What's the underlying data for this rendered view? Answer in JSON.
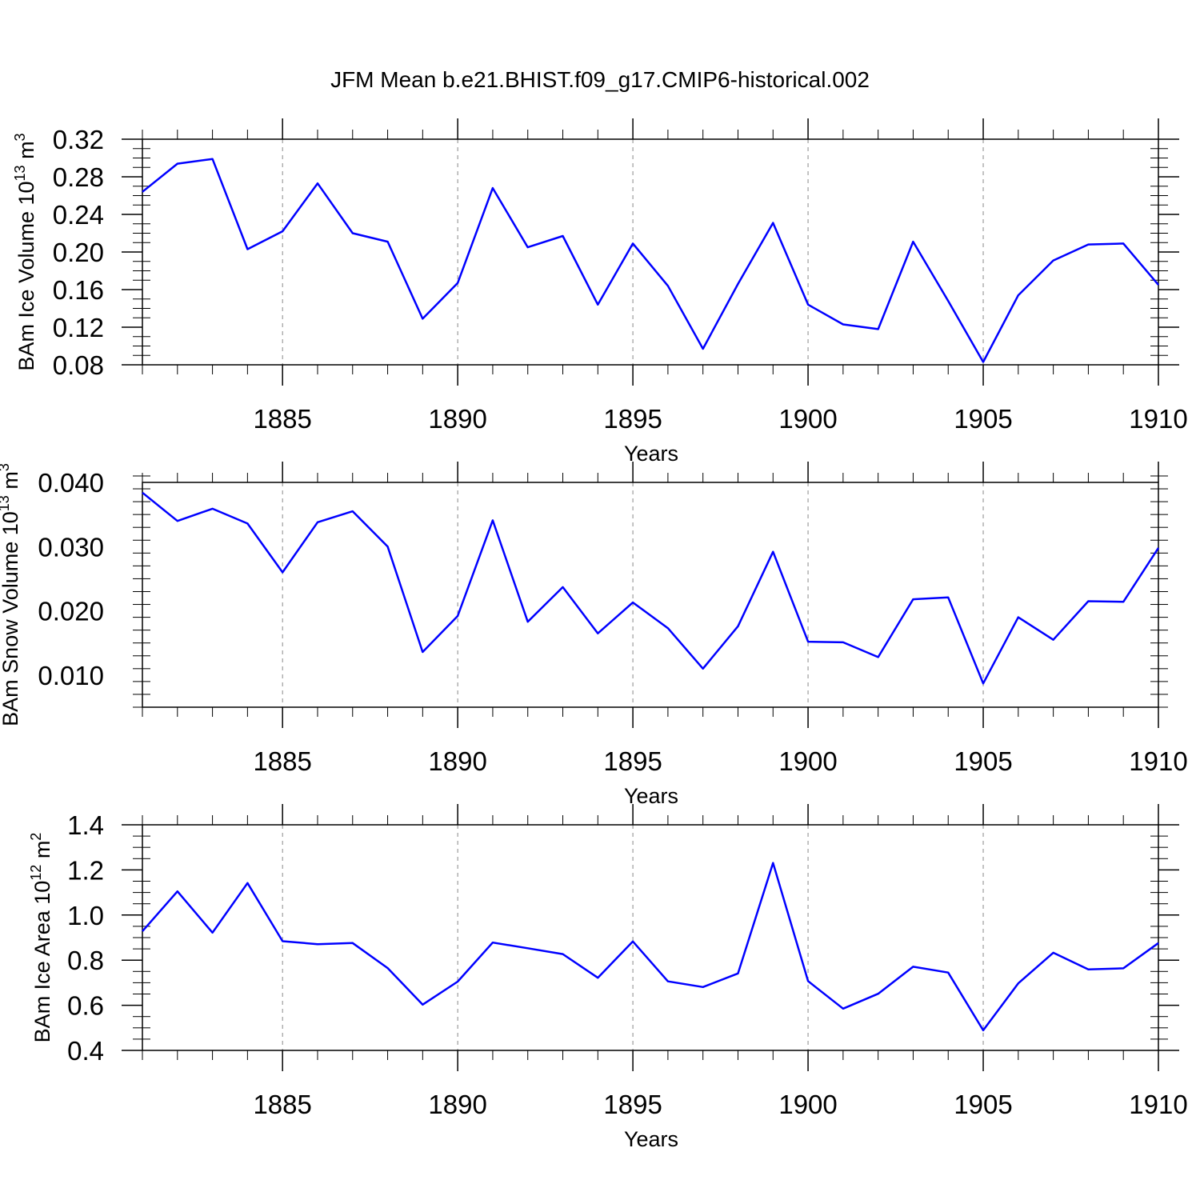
{
  "title": "JFM Mean b.e21.BHIST.f09_g17.CMIP6-historical.002",
  "colors": {
    "line": "#0000ff",
    "axis": "#000000",
    "grid": "#888888"
  },
  "chart_data": [
    {
      "type": "line",
      "ylabel": "BAm Ice Volume 10",
      "ylabel_sup": "13",
      "ylabel_unit": " m",
      "ylabel_unit_sup": "3",
      "xlabel": "Years",
      "xlim": [
        1881,
        1910
      ],
      "ylim": [
        0.08,
        0.32
      ],
      "xticks": [
        1885,
        1890,
        1895,
        1900,
        1905,
        1910
      ],
      "yticks": [
        0.08,
        0.12,
        0.16,
        0.2,
        0.24,
        0.28,
        0.32
      ],
      "ytick_labels": [
        "0.08",
        "0.12",
        "0.16",
        "0.20",
        "0.24",
        "0.28",
        "0.32"
      ],
      "yminor": 0.01,
      "x": [
        1881,
        1882,
        1883,
        1884,
        1885,
        1886,
        1887,
        1888,
        1889,
        1890,
        1891,
        1892,
        1893,
        1894,
        1895,
        1896,
        1897,
        1898,
        1899,
        1900,
        1901,
        1902,
        1903,
        1904,
        1905,
        1906,
        1907,
        1908,
        1909,
        1910
      ],
      "series": [
        {
          "name": "BAm Ice Volume",
          "values": [
            0.264,
            0.294,
            0.299,
            0.203,
            0.222,
            0.273,
            0.22,
            0.211,
            0.129,
            0.167,
            0.268,
            0.205,
            0.217,
            0.144,
            0.209,
            0.164,
            0.097,
            0.166,
            0.231,
            0.144,
            0.123,
            0.118,
            0.211,
            0.148,
            0.083,
            0.154,
            0.191,
            0.208,
            0.209,
            0.165
          ]
        }
      ]
    },
    {
      "type": "line",
      "ylabel": "BAm Snow Volume 10",
      "ylabel_sup": "13",
      "ylabel_unit": " m",
      "ylabel_unit_sup": "3",
      "xlabel": "Years",
      "xlim": [
        1881,
        1910
      ],
      "ylim": [
        0.005,
        0.04
      ],
      "xticks": [
        1885,
        1890,
        1895,
        1900,
        1905,
        1910
      ],
      "yticks": [
        0.01,
        0.02,
        0.03,
        0.04
      ],
      "ytick_labels": [
        "0.010",
        "0.020",
        "0.030",
        "0.040"
      ],
      "yminor": 0.002,
      "x": [
        1881,
        1882,
        1883,
        1884,
        1885,
        1886,
        1887,
        1888,
        1889,
        1890,
        1891,
        1892,
        1893,
        1894,
        1895,
        1896,
        1897,
        1898,
        1899,
        1900,
        1901,
        1902,
        1903,
        1904,
        1905,
        1906,
        1907,
        1908,
        1909,
        1910
      ],
      "series": [
        {
          "name": "BAm Snow Volume",
          "values": [
            0.0384,
            0.034,
            0.0359,
            0.0336,
            0.026,
            0.0338,
            0.0355,
            0.03,
            0.0136,
            0.0192,
            0.0341,
            0.0183,
            0.0237,
            0.0165,
            0.0213,
            0.0173,
            0.011,
            0.0176,
            0.0292,
            0.0152,
            0.0151,
            0.0128,
            0.0218,
            0.0221,
            0.0087,
            0.019,
            0.0155,
            0.0215,
            0.0214,
            0.0298
          ]
        }
      ]
    },
    {
      "type": "line",
      "ylabel": "BAm Ice Area 10",
      "ylabel_sup": "12",
      "ylabel_unit": " m",
      "ylabel_unit_sup": "2",
      "xlabel": "Years",
      "xlim": [
        1881,
        1910
      ],
      "ylim": [
        0.4,
        1.4
      ],
      "xticks": [
        1885,
        1890,
        1895,
        1900,
        1905,
        1910
      ],
      "yticks": [
        0.4,
        0.6,
        0.8,
        1.0,
        1.2,
        1.4
      ],
      "ytick_labels": [
        "0.4",
        "0.6",
        "0.8",
        "1.0",
        "1.2",
        "1.4"
      ],
      "yminor": 0.05,
      "x": [
        1881,
        1882,
        1883,
        1884,
        1885,
        1886,
        1887,
        1888,
        1889,
        1890,
        1891,
        1892,
        1893,
        1894,
        1895,
        1896,
        1897,
        1898,
        1899,
        1900,
        1901,
        1902,
        1903,
        1904,
        1905,
        1906,
        1907,
        1908,
        1909,
        1910
      ],
      "series": [
        {
          "name": "BAm Ice Area",
          "values": [
            0.928,
            1.105,
            0.922,
            1.142,
            0.884,
            0.871,
            0.876,
            0.765,
            0.603,
            0.705,
            0.878,
            0.853,
            0.827,
            0.722,
            0.883,
            0.706,
            0.681,
            0.741,
            1.231,
            0.707,
            0.585,
            0.651,
            0.771,
            0.745,
            0.489,
            0.697,
            0.833,
            0.759,
            0.764,
            0.876
          ]
        }
      ]
    }
  ]
}
